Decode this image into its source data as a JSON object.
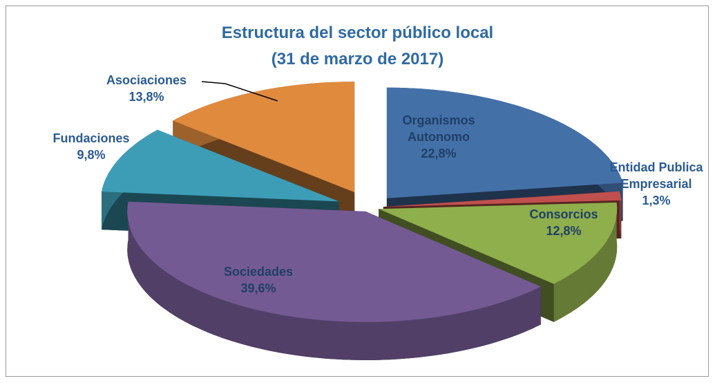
{
  "chart_data": {
    "type": "pie3d",
    "title": "Estructura del sector público local",
    "subtitle": "(31 de marzo de 2017)",
    "categories": [
      "Organismos Autonomo",
      "Entidad Publica Empresarial",
      "Consorcios",
      "Sociedades",
      "Fundaciones",
      "Asociaciones"
    ],
    "values": [
      22.8,
      1.3,
      12.8,
      39.6,
      9.8,
      13.8
    ],
    "value_labels": [
      "22,8%",
      "1,3%",
      "12,8%",
      "39,6%",
      "9,8%",
      "13,8%"
    ],
    "colors": [
      "#4470a8",
      "#c0504d",
      "#8fae4c",
      "#745a93",
      "#3d9db7",
      "#e08a3e"
    ]
  }
}
